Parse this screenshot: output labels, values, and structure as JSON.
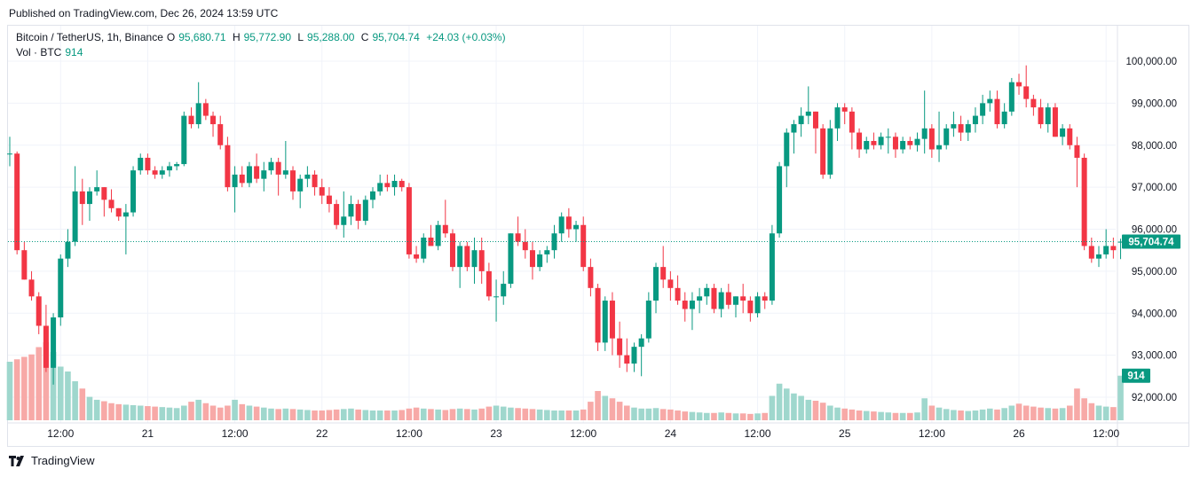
{
  "header": {
    "published_text": "Published on TradingView.com, Dec 26, 2024 13:59 UTC"
  },
  "legend": {
    "symbol": "Bitcoin / TetherUS, 1h, Binance",
    "o_label": "O",
    "o": "95,680.71",
    "h_label": "H",
    "h": "95,772.90",
    "l_label": "L",
    "l": "95,288.00",
    "c_label": "C",
    "c": "95,704.74",
    "change": "+24.03 (+0.03%)",
    "vol_label": "Vol · BTC",
    "vol_value": "914"
  },
  "footer": {
    "logo_text": "TradingView",
    "logo_icon": "tradingview-logo-icon"
  },
  "colors": {
    "up": "#089981",
    "down": "#f23645",
    "up_vol": "#9fd7cd",
    "down_vol": "#f7a9a7",
    "grid": "#f0f3fa"
  },
  "chart_data": {
    "type": "candlestick",
    "y_range": [
      91500,
      100500
    ],
    "y_ticks": [
      {
        "v": 100000,
        "label": "100,000.00"
      },
      {
        "v": 99000,
        "label": "99,000.00"
      },
      {
        "v": 98000,
        "label": "98,000.00"
      },
      {
        "v": 97000,
        "label": "97,000.00"
      },
      {
        "v": 96000,
        "label": "96,000.00"
      },
      {
        "v": 95000,
        "label": "95,000.00"
      },
      {
        "v": 94000,
        "label": "94,000.00"
      },
      {
        "v": 93000,
        "label": "93,000.00"
      },
      {
        "v": 92000,
        "label": "92,000.00"
      }
    ],
    "x_ticks": [
      {
        "i": 7,
        "label": "12:00"
      },
      {
        "i": 19,
        "label": "21"
      },
      {
        "i": 31,
        "label": "12:00"
      },
      {
        "i": 43,
        "label": "22"
      },
      {
        "i": 55,
        "label": "12:00"
      },
      {
        "i": 67,
        "label": "23"
      },
      {
        "i": 79,
        "label": "12:00"
      },
      {
        "i": 91,
        "label": "24"
      },
      {
        "i": 103,
        "label": "12:00"
      },
      {
        "i": 115,
        "label": "25"
      },
      {
        "i": 127,
        "label": "12:00"
      },
      {
        "i": 139,
        "label": "26"
      },
      {
        "i": 151,
        "label": "12:00"
      }
    ],
    "last_price": 95704.74,
    "last_price_label": "95,704.74",
    "last_volume": 914,
    "last_volume_label": "914",
    "candles": [
      [
        97800,
        98200,
        97500,
        97800,
        1200
      ],
      [
        97800,
        97850,
        95400,
        95500,
        1250
      ],
      [
        95500,
        95700,
        94800,
        94800,
        1300
      ],
      [
        94800,
        95000,
        94300,
        94400,
        1350
      ],
      [
        94400,
        94500,
        93500,
        93700,
        1500
      ],
      [
        93700,
        94200,
        92600,
        92700,
        1600
      ],
      [
        92700,
        94000,
        92300,
        93900,
        1400
      ],
      [
        93900,
        95400,
        93700,
        95300,
        1100
      ],
      [
        95300,
        96000,
        95100,
        95700,
        1000
      ],
      [
        95700,
        97500,
        95600,
        96900,
        800
      ],
      [
        96900,
        97200,
        96100,
        96600,
        650
      ],
      [
        96600,
        97000,
        96200,
        96900,
        480
      ],
      [
        96900,
        97400,
        96800,
        97000,
        420
      ],
      [
        97000,
        97000,
        96300,
        96700,
        390
      ],
      [
        96700,
        96950,
        96400,
        96500,
        350
      ],
      [
        96500,
        96500,
        96200,
        96300,
        330
      ],
      [
        96300,
        96600,
        95400,
        96400,
        320
      ],
      [
        96400,
        97500,
        96300,
        97400,
        310
      ],
      [
        97400,
        97800,
        97300,
        97700,
        300
      ],
      [
        97700,
        97800,
        97300,
        97400,
        290
      ],
      [
        97400,
        97500,
        97200,
        97300,
        280
      ],
      [
        97300,
        97500,
        97200,
        97400,
        270
      ],
      [
        97400,
        97600,
        97250,
        97500,
        260
      ],
      [
        97500,
        97600,
        97400,
        97550,
        250
      ],
      [
        97550,
        98800,
        97500,
        98700,
        300
      ],
      [
        98700,
        98900,
        98400,
        98500,
        380
      ],
      [
        98500,
        99500,
        98400,
        99000,
        420
      ],
      [
        99000,
        99100,
        98600,
        98700,
        350
      ],
      [
        98700,
        98800,
        98200,
        98500,
        300
      ],
      [
        98500,
        98700,
        97900,
        98000,
        260
      ],
      [
        98000,
        98200,
        96900,
        97000,
        300
      ],
      [
        97000,
        97500,
        96400,
        97300,
        420
      ],
      [
        97300,
        97500,
        97000,
        97100,
        330
      ],
      [
        97100,
        97600,
        97000,
        97500,
        300
      ],
      [
        97500,
        97800,
        97100,
        97200,
        280
      ],
      [
        97200,
        97600,
        96900,
        97400,
        260
      ],
      [
        97400,
        97700,
        97300,
        97600,
        240
      ],
      [
        97600,
        97700,
        96800,
        97300,
        230
      ],
      [
        97300,
        98100,
        97200,
        97400,
        240
      ],
      [
        97400,
        97500,
        96700,
        96900,
        230
      ],
      [
        96900,
        97300,
        96500,
        97200,
        220
      ],
      [
        97200,
        97500,
        97000,
        97300,
        210
      ],
      [
        97300,
        97400,
        96800,
        97000,
        200
      ],
      [
        97000,
        97200,
        96600,
        96800,
        200
      ],
      [
        96800,
        97000,
        96400,
        96600,
        210
      ],
      [
        96600,
        96700,
        96000,
        96100,
        220
      ],
      [
        96100,
        96900,
        95800,
        96300,
        230
      ],
      [
        96300,
        96800,
        96100,
        96600,
        240
      ],
      [
        96600,
        96700,
        96000,
        96200,
        220
      ],
      [
        96200,
        96800,
        96100,
        96700,
        210
      ],
      [
        96700,
        97000,
        96500,
        96900,
        200
      ],
      [
        96900,
        97300,
        96800,
        97100,
        200
      ],
      [
        97100,
        97300,
        96900,
        97000,
        200
      ],
      [
        97000,
        97300,
        96800,
        97150,
        200
      ],
      [
        97150,
        97200,
        96900,
        97000,
        210
      ],
      [
        97000,
        97100,
        95300,
        95400,
        240
      ],
      [
        95400,
        95600,
        95200,
        95300,
        260
      ],
      [
        95300,
        95900,
        95200,
        95800,
        240
      ],
      [
        95800,
        96100,
        95600,
        95600,
        230
      ],
      [
        95600,
        96200,
        95500,
        96100,
        220
      ],
      [
        96100,
        96700,
        95800,
        95900,
        210
      ],
      [
        95900,
        96000,
        95000,
        95100,
        230
      ],
      [
        95100,
        95700,
        94600,
        95600,
        240
      ],
      [
        95600,
        95700,
        95000,
        95100,
        230
      ],
      [
        95100,
        95800,
        94700,
        95500,
        220
      ],
      [
        95500,
        95800,
        94700,
        95000,
        240
      ],
      [
        95000,
        95200,
        94300,
        94400,
        280
      ],
      [
        94400,
        94800,
        93800,
        94400,
        300
      ],
      [
        94400,
        95000,
        94200,
        94700,
        280
      ],
      [
        94700,
        95900,
        94600,
        95900,
        260
      ],
      [
        95900,
        96300,
        95600,
        95700,
        250
      ],
      [
        95700,
        96000,
        95300,
        95500,
        240
      ],
      [
        95500,
        95700,
        94800,
        95100,
        230
      ],
      [
        95100,
        95500,
        95000,
        95400,
        220
      ],
      [
        95400,
        95600,
        95200,
        95500,
        210
      ],
      [
        95500,
        96100,
        95300,
        95900,
        200
      ],
      [
        95900,
        96400,
        95700,
        96300,
        200
      ],
      [
        96300,
        96500,
        95800,
        96000,
        200
      ],
      [
        96000,
        96200,
        95700,
        96100,
        200
      ],
      [
        96100,
        96300,
        95000,
        95100,
        220
      ],
      [
        95100,
        95300,
        94400,
        94600,
        380
      ],
      [
        94600,
        94700,
        93100,
        93300,
        600
      ],
      [
        93300,
        94400,
        93100,
        94300,
        500
      ],
      [
        94300,
        94500,
        93000,
        93400,
        450
      ],
      [
        93400,
        93800,
        92700,
        93000,
        380
      ],
      [
        93000,
        93400,
        92600,
        92800,
        300
      ],
      [
        92800,
        93300,
        92600,
        93200,
        260
      ],
      [
        93200,
        93500,
        92500,
        93400,
        240
      ],
      [
        93400,
        94500,
        93300,
        94300,
        240
      ],
      [
        94300,
        95200,
        94000,
        95100,
        250
      ],
      [
        95100,
        95600,
        94600,
        94800,
        230
      ],
      [
        94800,
        95000,
        94300,
        94600,
        220
      ],
      [
        94600,
        94900,
        94200,
        94300,
        200
      ],
      [
        94300,
        94500,
        93800,
        94100,
        180
      ],
      [
        94100,
        94500,
        93600,
        94300,
        170
      ],
      [
        94300,
        94600,
        94000,
        94400,
        160
      ],
      [
        94400,
        94700,
        94200,
        94600,
        150
      ],
      [
        94600,
        94700,
        94000,
        94100,
        150
      ],
      [
        94100,
        94600,
        93900,
        94500,
        160
      ],
      [
        94500,
        94700,
        94100,
        94200,
        150
      ],
      [
        94200,
        94400,
        93900,
        94400,
        140
      ],
      [
        94400,
        94700,
        94000,
        94300,
        140
      ],
      [
        94300,
        94400,
        93800,
        94000,
        130
      ],
      [
        94000,
        94500,
        93900,
        94400,
        140
      ],
      [
        94400,
        94500,
        94100,
        94300,
        150
      ],
      [
        94300,
        96100,
        94200,
        95900,
        500
      ],
      [
        95900,
        97600,
        95800,
        97500,
        750
      ],
      [
        97500,
        98400,
        97000,
        98300,
        650
      ],
      [
        98300,
        98600,
        97800,
        98500,
        550
      ],
      [
        98500,
        98900,
        98200,
        98700,
        500
      ],
      [
        98700,
        99400,
        98500,
        98800,
        420
      ],
      [
        98800,
        98800,
        97800,
        98400,
        400
      ],
      [
        98400,
        98500,
        97200,
        97300,
        360
      ],
      [
        97300,
        98600,
        97200,
        98400,
        300
      ],
      [
        98400,
        99000,
        98100,
        98900,
        260
      ],
      [
        98900,
        99000,
        98500,
        98800,
        240
      ],
      [
        98800,
        98900,
        97900,
        98300,
        220
      ],
      [
        98300,
        98400,
        97700,
        97900,
        200
      ],
      [
        97900,
        98200,
        97800,
        98100,
        190
      ],
      [
        98100,
        98300,
        97900,
        98000,
        180
      ],
      [
        98000,
        98300,
        97900,
        98200,
        170
      ],
      [
        98200,
        98400,
        97800,
        98200,
        160
      ],
      [
        98200,
        98300,
        97700,
        97900,
        150
      ],
      [
        97900,
        98200,
        97800,
        98100,
        150
      ],
      [
        98100,
        98200,
        97900,
        98000,
        150
      ],
      [
        98000,
        98300,
        97850,
        98150,
        160
      ],
      [
        98150,
        99300,
        97800,
        98400,
        450
      ],
      [
        98400,
        98500,
        97700,
        97900,
        300
      ],
      [
        97900,
        98800,
        97600,
        98000,
        260
      ],
      [
        98000,
        98500,
        97900,
        98400,
        230
      ],
      [
        98400,
        98800,
        98200,
        98500,
        210
      ],
      [
        98500,
        98700,
        98100,
        98300,
        200
      ],
      [
        98300,
        98600,
        98100,
        98500,
        190
      ],
      [
        98500,
        98900,
        98300,
        98700,
        200
      ],
      [
        98700,
        99200,
        98500,
        99000,
        220
      ],
      [
        99000,
        99300,
        98800,
        99100,
        240
      ],
      [
        99100,
        99300,
        98400,
        98500,
        220
      ],
      [
        98500,
        99000,
        98400,
        98800,
        250
      ],
      [
        98800,
        99600,
        98700,
        99500,
        300
      ],
      [
        99500,
        99700,
        99200,
        99400,
        340
      ],
      [
        99400,
        99900,
        98900,
        99100,
        300
      ],
      [
        99100,
        99200,
        98700,
        98900,
        280
      ],
      [
        98900,
        99100,
        98400,
        98500,
        260
      ],
      [
        98500,
        99000,
        98300,
        98900,
        250
      ],
      [
        98900,
        99000,
        98200,
        98200,
        240
      ],
      [
        98200,
        98500,
        98000,
        98400,
        250
      ],
      [
        98400,
        98500,
        97900,
        98000,
        300
      ],
      [
        98000,
        98200,
        97000,
        97700,
        650
      ],
      [
        97700,
        97800,
        95500,
        95600,
        450
      ],
      [
        95600,
        95800,
        95200,
        95300,
        350
      ],
      [
        95300,
        95600,
        95100,
        95400,
        300
      ],
      [
        95400,
        96000,
        95300,
        95600,
        280
      ],
      [
        95600,
        95800,
        95300,
        95500,
        270
      ],
      [
        95680.71,
        95772.9,
        95288,
        95704.74,
        914
      ]
    ]
  }
}
